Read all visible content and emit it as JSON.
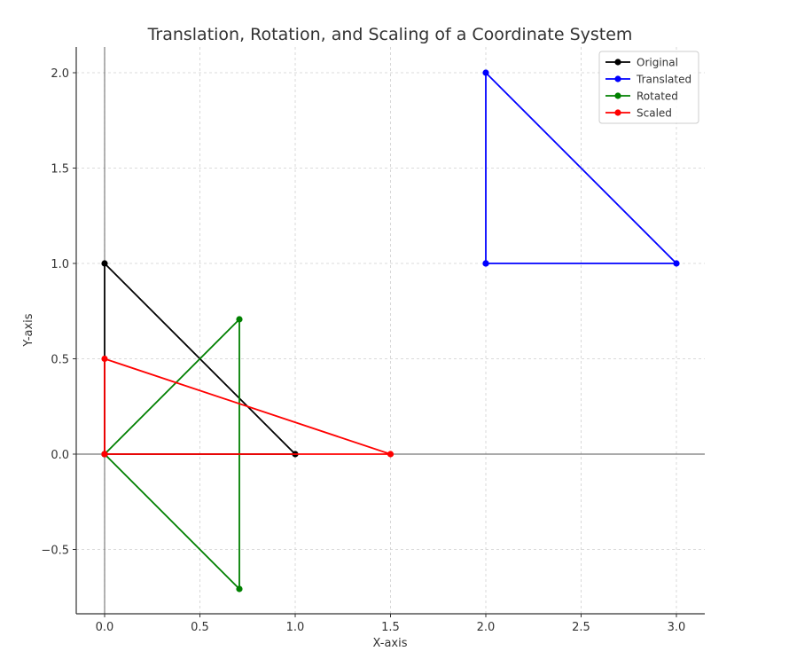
{
  "chart_data": {
    "type": "line",
    "title": "Translation, Rotation, and Scaling of a Coordinate System",
    "xlabel": "X-axis",
    "ylabel": "Y-axis",
    "xlim": [
      -0.15,
      3.15
    ],
    "ylim": [
      -0.84,
      2.13
    ],
    "xticks": [
      0.0,
      0.5,
      1.0,
      1.5,
      2.0,
      2.5,
      3.0
    ],
    "xtick_labels": [
      "0.0",
      "0.5",
      "1.0",
      "1.5",
      "2.0",
      "2.5",
      "3.0"
    ],
    "yticks": [
      -0.5,
      0.0,
      0.5,
      1.0,
      1.5,
      2.0
    ],
    "ytick_labels": [
      "−0.5",
      "0.0",
      "0.5",
      "1.0",
      "1.5",
      "2.0"
    ],
    "grid": true,
    "legend_position": "upper right",
    "reference_lines": {
      "axhline_y": 0,
      "axvline_x": 0
    },
    "series": [
      {
        "name": "Original",
        "color": "#000000",
        "points": [
          [
            0,
            0
          ],
          [
            1,
            0
          ],
          [
            0,
            1
          ],
          [
            0,
            0
          ]
        ]
      },
      {
        "name": "Translated",
        "color": "#0000ff",
        "points": [
          [
            2,
            1
          ],
          [
            3,
            1
          ],
          [
            2,
            2
          ],
          [
            2,
            1
          ]
        ]
      },
      {
        "name": "Rotated",
        "color": "#008000",
        "points": [
          [
            0,
            0
          ],
          [
            0.707,
            0.707
          ],
          [
            0.707,
            -0.707
          ],
          [
            0,
            0
          ]
        ]
      },
      {
        "name": "Scaled",
        "color": "#ff0000",
        "points": [
          [
            0,
            0
          ],
          [
            1.5,
            0
          ],
          [
            0,
            0.5
          ],
          [
            0,
            0
          ]
        ]
      }
    ]
  }
}
